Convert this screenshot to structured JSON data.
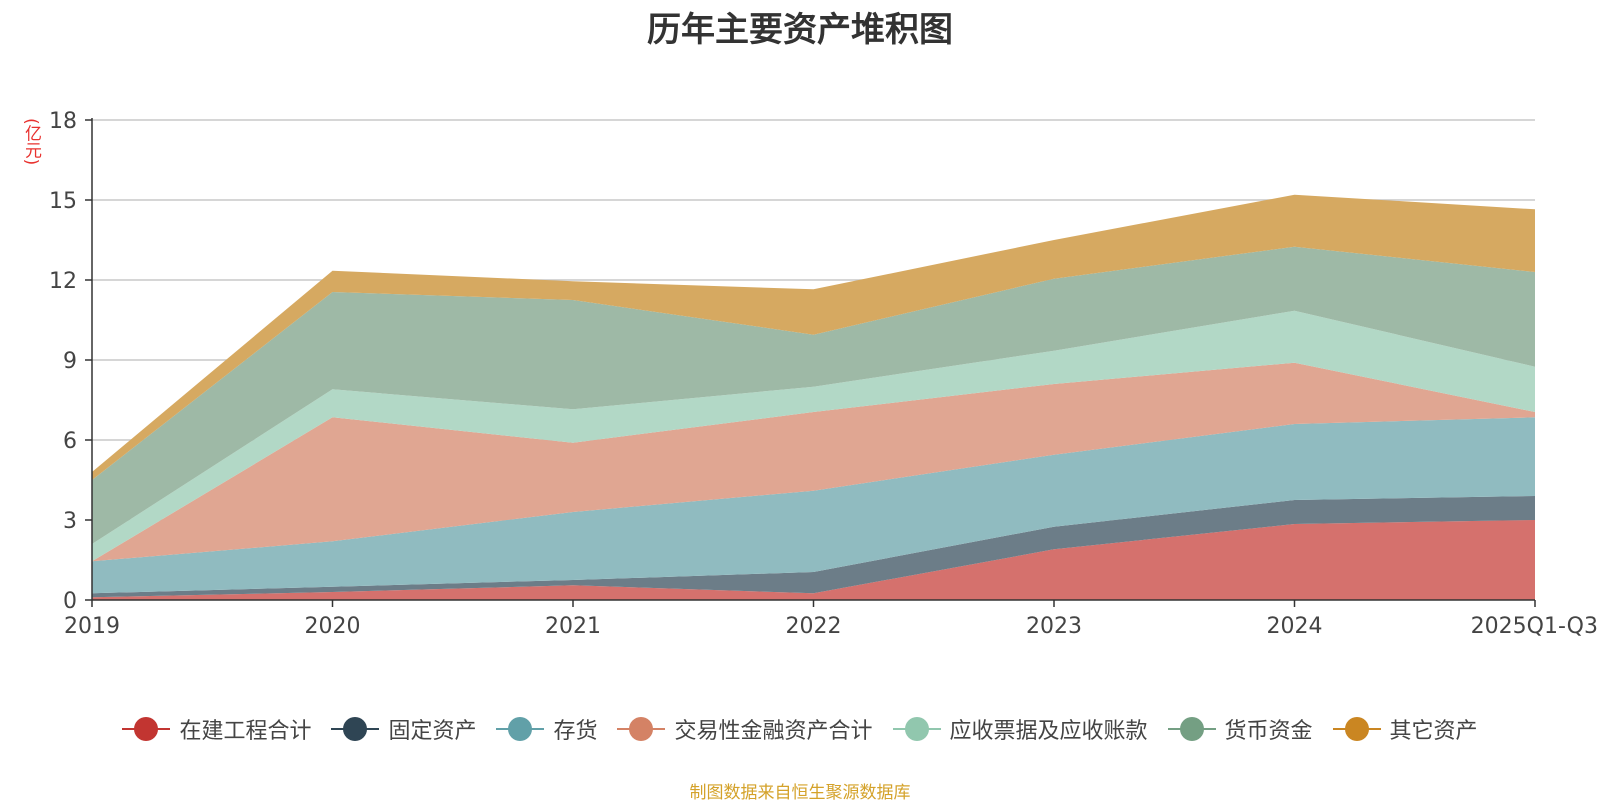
{
  "chart_data": {
    "type": "area",
    "stacked": true,
    "title": "历年主要资产堆积图",
    "unit_label": "(亿元)",
    "categories": [
      "2019",
      "2020",
      "2021",
      "2022",
      "2023",
      "2024",
      "2025Q1-Q3"
    ],
    "ylim": [
      0,
      18
    ],
    "yticks": [
      0,
      3,
      6,
      9,
      12,
      15,
      18
    ],
    "grid": true,
    "legend_position": "bottom",
    "series": [
      {
        "name": "在建工程合计",
        "color": "#c23531",
        "area_color": "#d5716d",
        "values": [
          0.1,
          0.3,
          0.55,
          0.25,
          1.9,
          2.85,
          3.0
        ]
      },
      {
        "name": "固定资产",
        "color": "#2f4554",
        "area_color": "#6c7d88",
        "values": [
          0.15,
          0.2,
          0.2,
          0.8,
          0.85,
          0.9,
          0.9
        ]
      },
      {
        "name": "存货",
        "color": "#61a0a8",
        "area_color": "#90bbc0",
        "values": [
          1.2,
          1.7,
          2.55,
          3.05,
          2.7,
          2.85,
          2.95
        ]
      },
      {
        "name": "交易性金融资产合计",
        "color": "#d48265",
        "area_color": "#e0a692",
        "values": [
          0.0,
          4.65,
          2.6,
          2.95,
          2.65,
          2.3,
          0.2
        ]
      },
      {
        "name": "应收票据及应收账款",
        "color": "#91c7ae",
        "area_color": "#b2d8c6",
        "values": [
          0.65,
          1.05,
          1.25,
          0.95,
          1.25,
          1.95,
          1.7
        ]
      },
      {
        "name": "货币资金",
        "color": "#749f83",
        "area_color": "#9eb9a6",
        "values": [
          2.4,
          3.65,
          4.1,
          1.95,
          2.7,
          2.4,
          3.55
        ]
      },
      {
        "name": "其它资产",
        "color": "#ca8622",
        "area_color": "#d6a961",
        "values": [
          0.3,
          0.8,
          0.7,
          1.7,
          1.45,
          1.95,
          2.35
        ]
      }
    ]
  },
  "source_note": "制图数据来自恒生聚源数据库"
}
